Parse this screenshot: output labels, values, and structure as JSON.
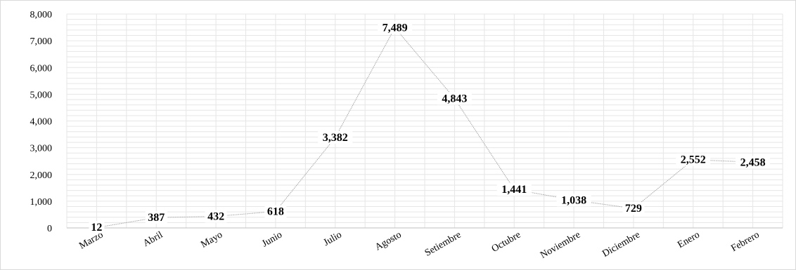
{
  "chart_data": {
    "type": "line",
    "categories": [
      "Marzo",
      "Abril",
      "Mayo",
      "Junio",
      "Julio",
      "Agosto",
      "Setiembre",
      "Octubre",
      "Noviembre",
      "Diciembre",
      "Enero",
      "Febrero"
    ],
    "values": [
      12,
      387,
      432,
      618,
      3382,
      7489,
      4843,
      1441,
      1038,
      729,
      2552,
      2458
    ],
    "data_labels": [
      "12",
      "387",
      "432",
      "618",
      "3,382",
      "7,489",
      "4,843",
      "1,441",
      "1,038",
      "729",
      "2,552",
      "2,458"
    ],
    "y_ticks": [
      "0",
      "1,000",
      "2,000",
      "3,000",
      "4,000",
      "5,000",
      "6,000",
      "7,000",
      "8,000"
    ],
    "ylim": [
      0,
      8000
    ],
    "grid": true,
    "legend": "none",
    "line_color": "#a6a6a6",
    "grid_color": "#e6e6e6"
  }
}
